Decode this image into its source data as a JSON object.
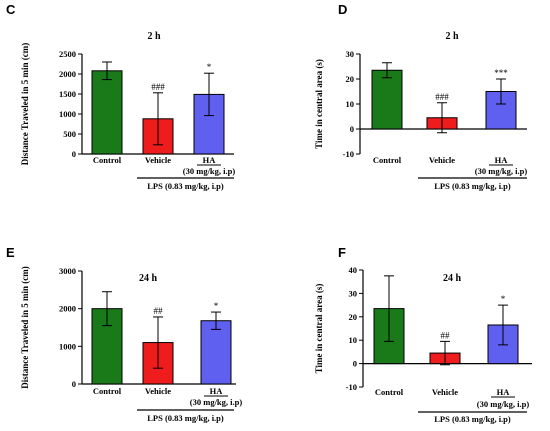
{
  "chart_data": [
    {
      "type": "bar",
      "panel": "C",
      "title": "2 h",
      "ylabel": "Distance Traveled in 5 min (cm)",
      "ylim": [
        0,
        2500
      ],
      "yticks": [
        0,
        500,
        1000,
        1500,
        2000,
        2500
      ],
      "categories": [
        "Control",
        "Vehicle",
        "HA"
      ],
      "category_sublabels": [
        "",
        "",
        "(30 mg/kg, i.p)"
      ],
      "values": [
        2080,
        880,
        1490
      ],
      "errors": [
        220,
        650,
        530
      ],
      "colors": [
        "#1a7a1a",
        "#ee1c1c",
        "#6060f0"
      ],
      "significance": [
        "",
        "###",
        "*"
      ],
      "group_label": "LPS (0.83 mg/kg, i.p)"
    },
    {
      "type": "bar",
      "panel": "D",
      "title": "2 h",
      "ylabel": "Time in central area (s)",
      "ylim": [
        -10,
        30
      ],
      "yticks": [
        -10,
        0,
        10,
        20,
        30
      ],
      "categories": [
        "Control",
        "Vehicle",
        "HA"
      ],
      "category_sublabels": [
        "",
        "",
        "(30 mg/kg, i.p)"
      ],
      "values": [
        23.5,
        4.5,
        15
      ],
      "errors": [
        3,
        6,
        5
      ],
      "colors": [
        "#1a7a1a",
        "#ee1c1c",
        "#6060f0"
      ],
      "significance": [
        "",
        "###",
        "***"
      ],
      "group_label": "LPS (0.83 mg/kg, i.p)"
    },
    {
      "type": "bar",
      "panel": "E",
      "title": "24 h",
      "ylabel": "Distance Traveled in 5 min (cm)",
      "ylim": [
        0,
        3000
      ],
      "yticks": [
        0,
        1000,
        2000,
        3000
      ],
      "categories": [
        "Control",
        "Vehicle",
        "HA"
      ],
      "category_sublabels": [
        "",
        "",
        "(30 mg/kg, i.p)"
      ],
      "values": [
        2000,
        1100,
        1680
      ],
      "errors": [
        450,
        680,
        230
      ],
      "colors": [
        "#1a7a1a",
        "#ee1c1c",
        "#6060f0"
      ],
      "significance": [
        "",
        "##",
        "*"
      ],
      "group_label": "LPS (0.83 mg/kg, i.p)"
    },
    {
      "type": "bar",
      "panel": "F",
      "title": "24 h",
      "ylabel": "Time in central area (s)",
      "ylim": [
        -10,
        40
      ],
      "yticks": [
        -10,
        0,
        10,
        20,
        30,
        40
      ],
      "categories": [
        "Control",
        "Vehicle",
        "HA"
      ],
      "category_sublabels": [
        "",
        "",
        "(30 mg/kg, i.p)"
      ],
      "values": [
        23.5,
        4.5,
        16.5
      ],
      "errors": [
        14,
        5,
        8.5
      ],
      "colors": [
        "#1a7a1a",
        "#ee1c1c",
        "#6060f0"
      ],
      "significance": [
        "",
        "##",
        "*"
      ],
      "group_label": "LPS (0.83 mg/kg, i.p)"
    }
  ]
}
